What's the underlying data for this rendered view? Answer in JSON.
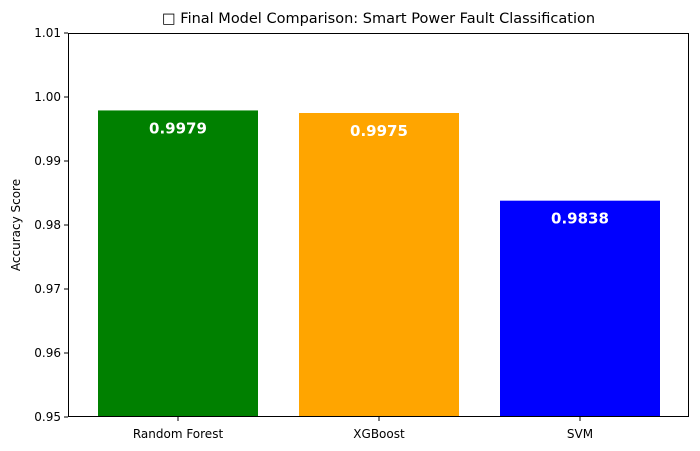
{
  "chart_data": {
    "type": "bar",
    "title": "□ Final Model Comparison: Smart Power Fault Classification",
    "xlabel": "",
    "ylabel": "Accuracy Score",
    "categories": [
      "Random Forest",
      "XGBoost",
      "SVM"
    ],
    "values": [
      0.9979,
      0.9975,
      0.9838
    ],
    "data_labels": [
      "0.9979",
      "0.9975",
      "0.9838"
    ],
    "colors": [
      "#008000",
      "#FFA500",
      "#0000FF"
    ],
    "ylim": [
      0.95,
      1.01
    ],
    "yticks": [
      0.95,
      0.96,
      0.97,
      0.98,
      0.99,
      1.0,
      1.01
    ],
    "ytick_labels": [
      "0.95",
      "0.96",
      "0.97",
      "0.98",
      "0.99",
      "1.00",
      "1.01"
    ],
    "grid": false,
    "legend": false
  }
}
